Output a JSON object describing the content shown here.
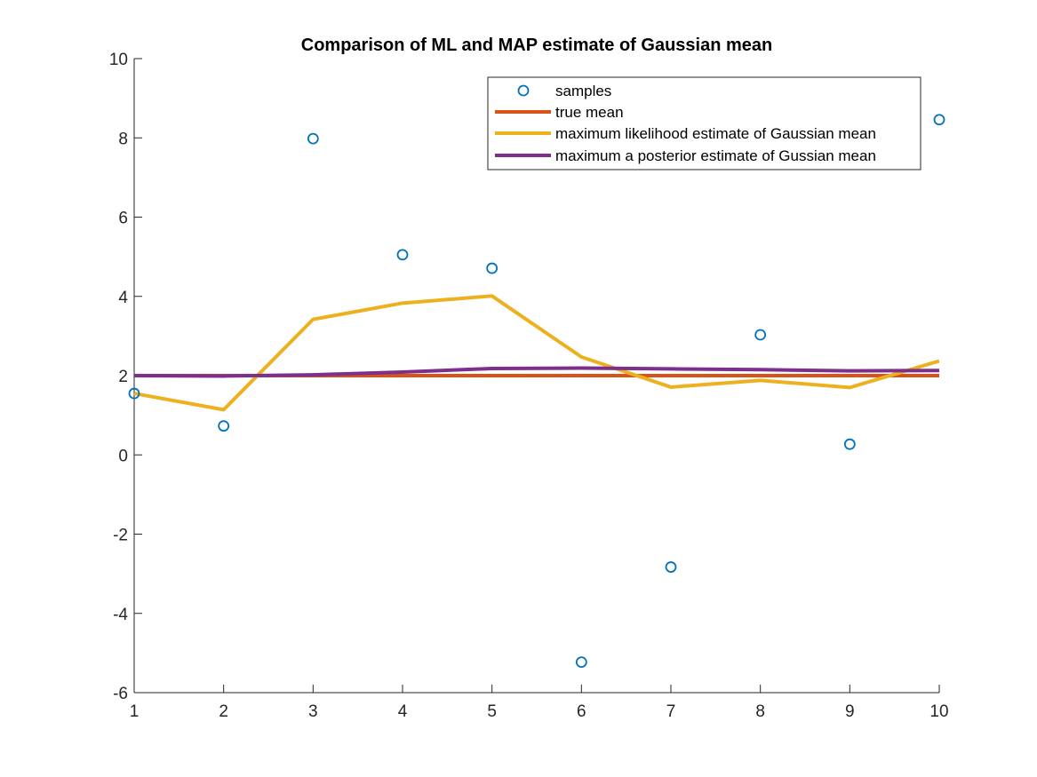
{
  "chart_data": {
    "type": "line",
    "title": "Comparison of ML and MAP estimate of Gaussian mean",
    "xlabel": "",
    "ylabel": "",
    "xlim": [
      1,
      10
    ],
    "ylim": [
      -6,
      10
    ],
    "x_ticks": [
      1,
      2,
      3,
      4,
      5,
      6,
      7,
      8,
      9,
      10
    ],
    "y_ticks": [
      -6,
      -4,
      -2,
      0,
      2,
      4,
      6,
      8,
      10
    ],
    "x": [
      1,
      2,
      3,
      4,
      5,
      6,
      7,
      8,
      9,
      10
    ],
    "grid": false,
    "legend_position": "top-right",
    "series": [
      {
        "name": "samples",
        "kind": "marker",
        "marker": "circle",
        "color": "#0072BD",
        "values": [
          1.55,
          0.73,
          7.98,
          5.05,
          4.71,
          -5.23,
          -2.83,
          3.03,
          0.27,
          8.46
        ]
      },
      {
        "name": "true mean",
        "kind": "line",
        "color": "#D95319",
        "values": [
          2,
          2,
          2,
          2,
          2,
          2,
          2,
          2,
          2,
          2
        ]
      },
      {
        "name": "maximum likelihood estimate of Gaussian mean",
        "kind": "line",
        "color": "#EDB120",
        "values": [
          1.55,
          1.14,
          3.42,
          3.83,
          4.01,
          2.47,
          1.71,
          1.88,
          1.7,
          2.37
        ]
      },
      {
        "name": "maximum a posterior estimate of Gussian mean",
        "kind": "line",
        "color": "#7E2F8E",
        "values": [
          2.0,
          1.99,
          2.02,
          2.09,
          2.18,
          2.19,
          2.17,
          2.15,
          2.12,
          2.13
        ]
      }
    ]
  }
}
